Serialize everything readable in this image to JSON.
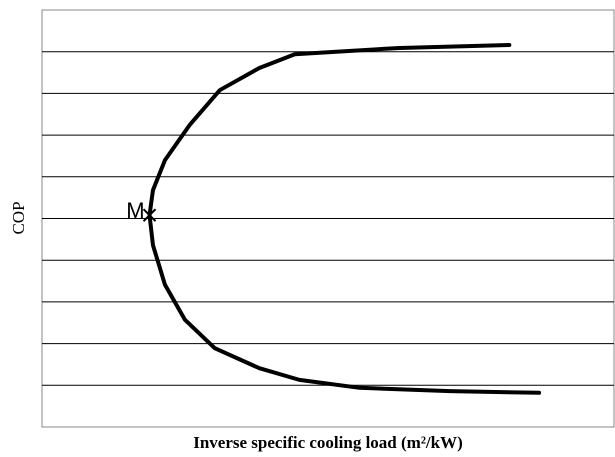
{
  "chart_data": {
    "type": "line",
    "xlabel": "Inverse specific cooling load (m²/kW)",
    "ylabel": "COP",
    "x": [
      81.7,
      62.5,
      44.2,
      38.0,
      31.1,
      25.8,
      21.5,
      19.4,
      18.8,
      19.4,
      21.5,
      25.0,
      30.2,
      38.0,
      45.0,
      55.5,
      71.3,
      86.9
    ],
    "values": [
      9.16,
      9.09,
      8.94,
      8.61,
      8.08,
      7.24,
      6.4,
      5.68,
      5.08,
      4.36,
      3.41,
      2.57,
      1.89,
      1.41,
      1.13,
      0.94,
      0.86,
      0.82
    ],
    "color": "#000000",
    "xlim": [
      0,
      100
    ],
    "ylim": [
      0,
      10
    ],
    "yticks": [
      1,
      2,
      3,
      4,
      5,
      6,
      7,
      8,
      9
    ],
    "grid": true,
    "tick_labels": false,
    "annotations": [
      {
        "text": "M",
        "x": 18.8,
        "y": 5.08
      }
    ]
  }
}
